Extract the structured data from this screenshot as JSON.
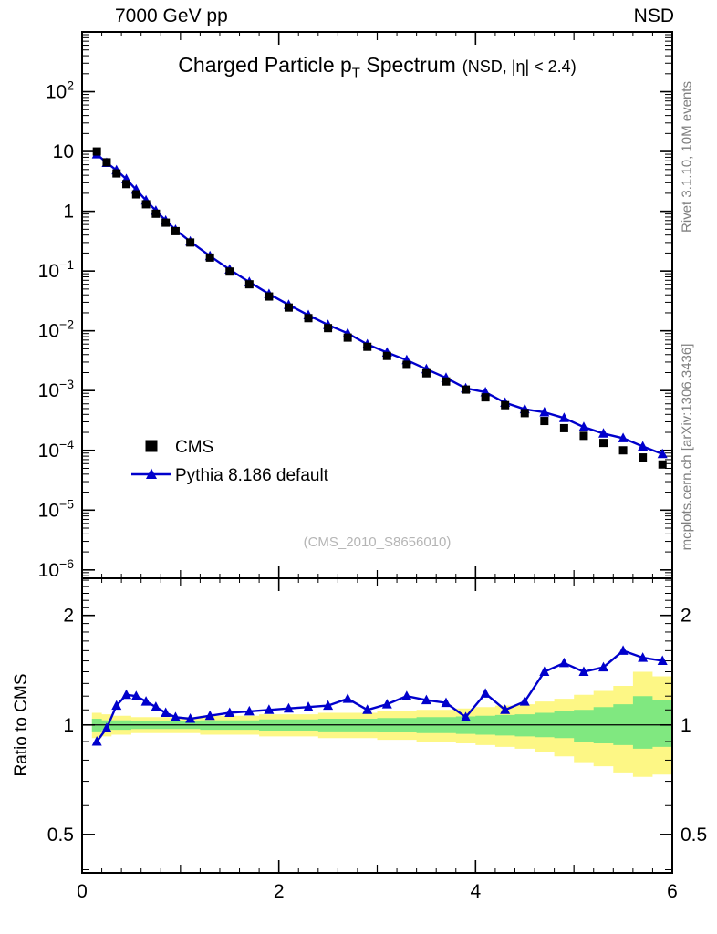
{
  "header": {
    "left_label": "7000 GeV pp",
    "right_label": "NSD"
  },
  "titles": {
    "main_pre": "Charged Particle p",
    "main_sub": "T",
    "main_post": " Spectrum",
    "condition": "(NSD, |η| < 2.4)",
    "watermark": "(CMS_2010_S8656010)",
    "rivet_side": "Rivet 3.1.10,  10M events",
    "mcplots_side": "mcplots.cern.ch [arXiv:1306.3436]",
    "ratio_ylabel": "Ratio to CMS"
  },
  "colors": {
    "cms": "#000000",
    "pythia": "#0000cc",
    "band_yellow": "#fdf785",
    "band_green": "#80e880",
    "frame": "#000000",
    "watermark": "#b5b5b5",
    "side_text": "#808080"
  },
  "chart_data": {
    "type": "line",
    "title": "Charged Particle pT Spectrum (NSD, |η| < 2.4)",
    "xlabel": "",
    "ylabel": "",
    "x_range": [
      0,
      6
    ],
    "x_major_ticks": [
      0,
      2,
      4,
      6
    ],
    "main_y_scale": "log",
    "main_y_exponent_range": [
      -6.14,
      3.0
    ],
    "main_y_tick_exponents": [
      2,
      1,
      0,
      -1,
      -2,
      -3,
      -4,
      -5,
      -6
    ],
    "ratio_scale": "log",
    "ratio_range": [
      0.392,
      2.53
    ],
    "ratio_ticks": [
      2,
      1,
      0.5
    ],
    "legend_position": "inside-left-lower",
    "grid": false,
    "x": [
      0.15,
      0.25,
      0.35,
      0.45,
      0.55,
      0.65,
      0.75,
      0.85,
      0.95,
      1.1,
      1.3,
      1.5,
      1.7,
      1.9,
      2.1,
      2.3,
      2.5,
      2.7,
      2.9,
      3.1,
      3.3,
      3.5,
      3.7,
      3.9,
      4.1,
      4.3,
      4.5,
      4.7,
      4.9,
      5.1,
      5.3,
      5.5,
      5.7,
      5.9
    ],
    "series": [
      {
        "name": "CMS",
        "marker": "square",
        "color": "#000000",
        "values": [
          10.0,
          6.6,
          4.3,
          2.85,
          1.92,
          1.31,
          0.91,
          0.645,
          0.465,
          0.3,
          0.168,
          0.098,
          0.06,
          0.0375,
          0.0245,
          0.0163,
          0.0111,
          0.0077,
          0.0054,
          0.0038,
          0.0027,
          0.00195,
          0.00142,
          0.00104,
          0.00077,
          0.00057,
          0.00042,
          0.00031,
          0.000235,
          0.000175,
          0.000133,
          0.0001,
          7.6e-05,
          5.8e-05
        ]
      },
      {
        "name": "Pythia 8.186 default",
        "marker": "triangle",
        "color": "#0000cc",
        "derived": "CMS value times ratio value"
      }
    ],
    "ratio": {
      "reference": "CMS",
      "series": [
        {
          "name": "Pythia 8.186 default",
          "values": [
            0.9,
            0.98,
            1.13,
            1.21,
            1.2,
            1.16,
            1.12,
            1.08,
            1.05,
            1.04,
            1.06,
            1.08,
            1.09,
            1.1,
            1.11,
            1.12,
            1.13,
            1.18,
            1.1,
            1.14,
            1.2,
            1.17,
            1.15,
            1.05,
            1.22,
            1.1,
            1.16,
            1.4,
            1.48,
            1.4,
            1.44,
            1.6,
            1.53,
            1.5
          ]
        }
      ],
      "bands": {
        "yellow_hi": [
          1.08,
          1.07,
          1.06,
          1.06,
          1.05,
          1.05,
          1.05,
          1.05,
          1.05,
          1.05,
          1.06,
          1.06,
          1.06,
          1.07,
          1.07,
          1.07,
          1.08,
          1.08,
          1.08,
          1.09,
          1.09,
          1.1,
          1.1,
          1.11,
          1.12,
          1.13,
          1.14,
          1.16,
          1.18,
          1.21,
          1.24,
          1.28,
          1.4,
          1.36
        ],
        "yellow_lo": [
          0.92,
          0.93,
          0.94,
          0.94,
          0.95,
          0.95,
          0.95,
          0.95,
          0.95,
          0.95,
          0.94,
          0.94,
          0.94,
          0.93,
          0.93,
          0.93,
          0.92,
          0.92,
          0.92,
          0.91,
          0.91,
          0.9,
          0.9,
          0.89,
          0.88,
          0.87,
          0.86,
          0.84,
          0.82,
          0.79,
          0.77,
          0.74,
          0.72,
          0.73
        ],
        "green_hi": [
          1.04,
          1.03,
          1.03,
          1.03,
          1.025,
          1.025,
          1.025,
          1.025,
          1.025,
          1.025,
          1.03,
          1.03,
          1.03,
          1.035,
          1.035,
          1.035,
          1.04,
          1.04,
          1.04,
          1.045,
          1.045,
          1.05,
          1.05,
          1.055,
          1.06,
          1.065,
          1.07,
          1.08,
          1.09,
          1.1,
          1.12,
          1.14,
          1.2,
          1.17
        ],
        "green_lo": [
          0.96,
          0.97,
          0.97,
          0.97,
          0.975,
          0.975,
          0.975,
          0.975,
          0.975,
          0.975,
          0.97,
          0.97,
          0.97,
          0.965,
          0.965,
          0.965,
          0.96,
          0.96,
          0.96,
          0.955,
          0.955,
          0.95,
          0.95,
          0.945,
          0.94,
          0.935,
          0.93,
          0.925,
          0.92,
          0.9,
          0.89,
          0.88,
          0.86,
          0.87
        ]
      }
    }
  },
  "legend": {
    "items": [
      {
        "label": "CMS"
      },
      {
        "label": "Pythia 8.186 default"
      }
    ]
  }
}
